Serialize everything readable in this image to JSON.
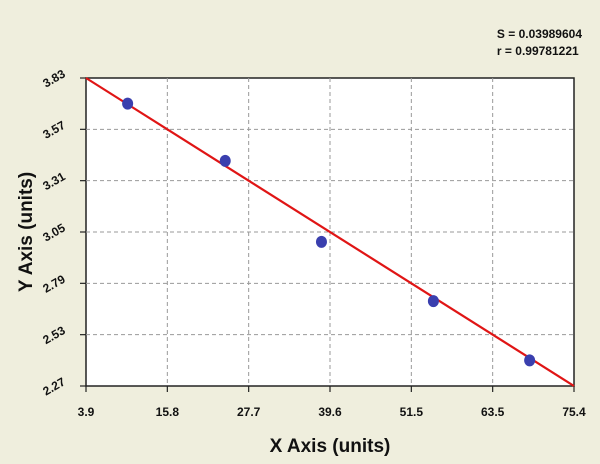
{
  "chart_data": {
    "type": "scatter",
    "xlabel": "X Axis (units)",
    "ylabel": "Y Axis (units)",
    "xlim": [
      3.9,
      75.4
    ],
    "ylim": [
      2.27,
      3.83
    ],
    "x_ticks": [
      "3.9",
      "15.8",
      "27.7",
      "39.6",
      "51.5",
      "63.5",
      "75.4"
    ],
    "y_ticks": [
      "2.27",
      "2.53",
      "2.79",
      "3.05",
      "3.31",
      "3.57",
      "3.83"
    ],
    "grid": true,
    "points": [
      {
        "x": 10,
        "y": 3.7
      },
      {
        "x": 24.3,
        "y": 3.41
      },
      {
        "x": 38.4,
        "y": 3.0
      },
      {
        "x": 54.8,
        "y": 2.7
      },
      {
        "x": 68.9,
        "y": 2.4
      }
    ],
    "fit_line": {
      "x0": 3.9,
      "y0": 3.83,
      "x1": 75.4,
      "y1": 2.27
    },
    "stats": {
      "s": "S = 0.03989604",
      "r": "r = 0.99781221"
    },
    "colors": {
      "points": "#3a3fae",
      "fit": "#e01515",
      "plot_bg": "#ffffff",
      "page_bg": "#efeedd"
    }
  }
}
